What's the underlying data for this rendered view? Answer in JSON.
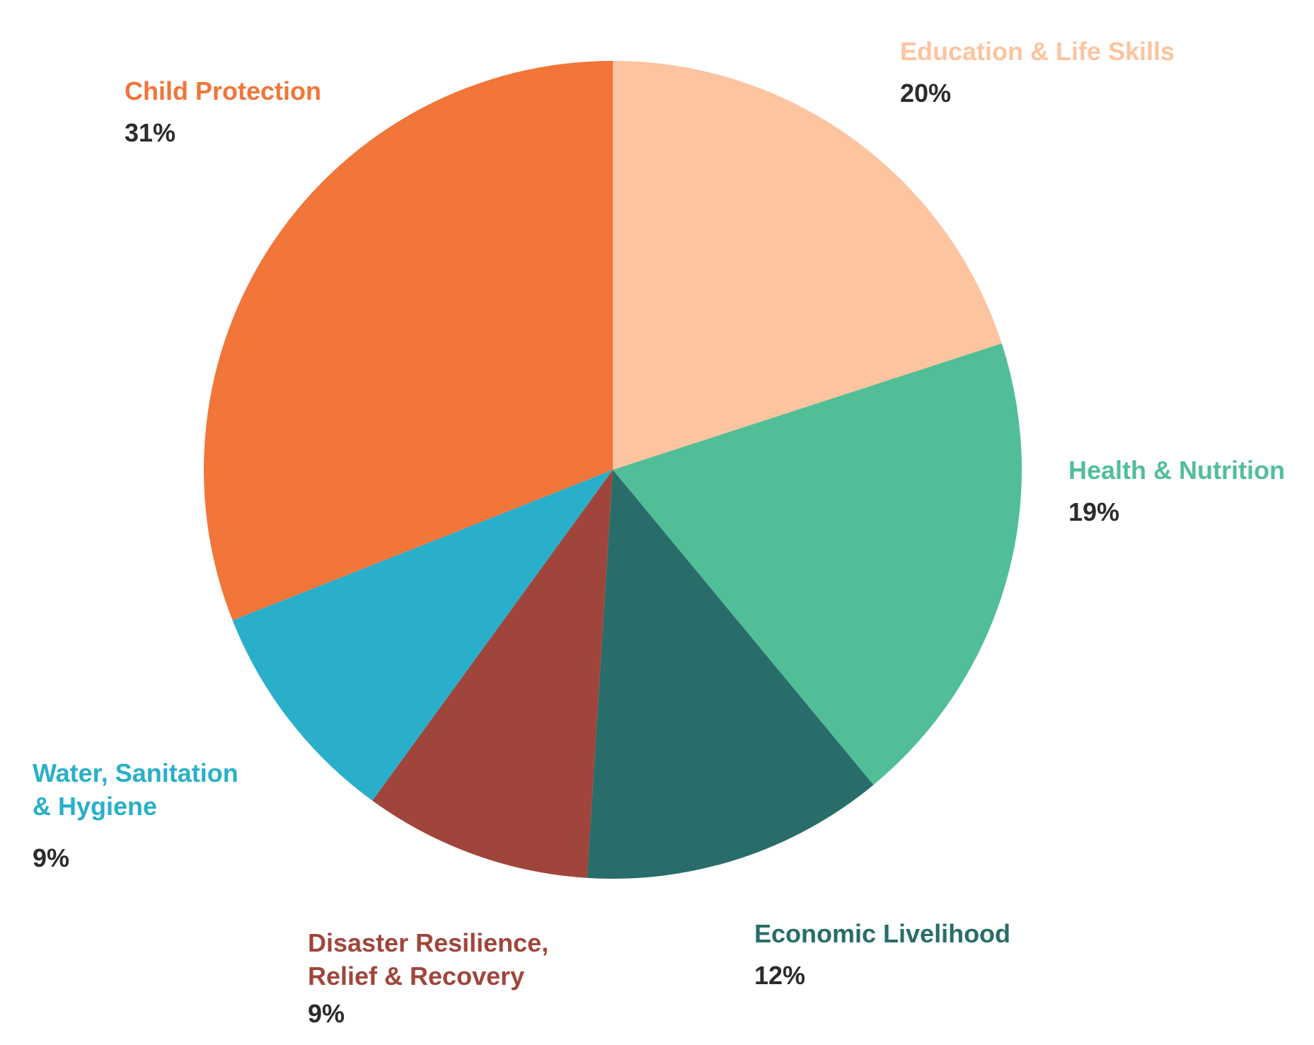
{
  "chart_data": {
    "type": "pie",
    "title": "",
    "slices": [
      {
        "label": "Education & Life Skills",
        "label_lines": [
          "Education & Life Skills"
        ],
        "value": 20,
        "display": "20%",
        "color": "#FCC49F"
      },
      {
        "label": "Health & Nutrition",
        "label_lines": [
          "Health & Nutrition"
        ],
        "value": 19,
        "display": "19%",
        "color": "#52BE98"
      },
      {
        "label": "Economic Livelihood",
        "label_lines": [
          "Economic Livelihood"
        ],
        "value": 12,
        "display": "12%",
        "color": "#286D69"
      },
      {
        "label": "Disaster Resilience, Relief & Recovery",
        "label_lines": [
          "Disaster Resilience,",
          "Relief & Recovery"
        ],
        "value": 9,
        "display": "9%",
        "color": "#A0453B"
      },
      {
        "label": "Water, Sanitation & Hygiene",
        "label_lines": [
          "Water, Sanitation",
          "& Hygiene"
        ],
        "value": 9,
        "display": "9%",
        "color": "#29AFCA"
      },
      {
        "label": "Child Protection",
        "label_lines": [
          "Child Protection"
        ],
        "value": 31,
        "display": "31%",
        "color": "#F27539"
      }
    ],
    "start_angle_deg": 0,
    "direction": "clockwise",
    "legend": "none",
    "value_text_color": "#2b2b2b"
  }
}
